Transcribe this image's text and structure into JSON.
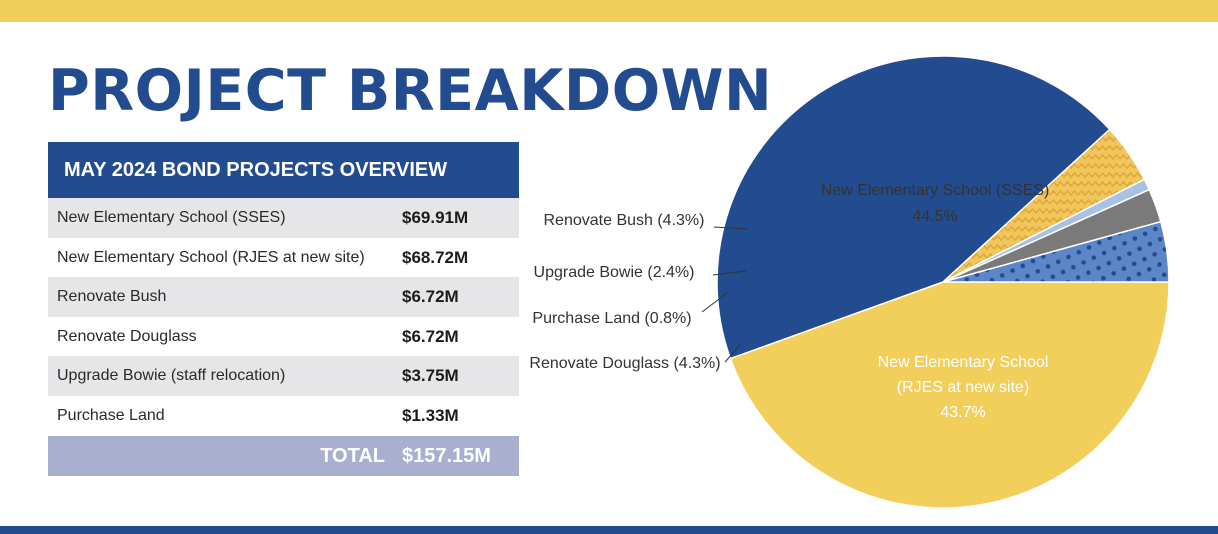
{
  "title": "PROJECT BREAKDOWN",
  "table": {
    "header": "MAY 2024 BOND PROJECTS OVERVIEW",
    "rows": [
      {
        "label": "New Elementary School (SSES)",
        "value": "$69.91M"
      },
      {
        "label": "New Elementary School (RJES at new site)",
        "value": "$68.72M"
      },
      {
        "label": "Renovate Bush",
        "value": "$6.72M"
      },
      {
        "label": "Renovate Douglass",
        "value": "$6.72M"
      },
      {
        "label": "Upgrade Bowie (staff relocation)",
        "value": "$3.75M"
      },
      {
        "label": "Purchase Land",
        "value": "$1.33M"
      }
    ],
    "total_label": "TOTAL",
    "total_value": "$157.15M"
  },
  "colors": {
    "navy": "#234b8f",
    "yellow": "#f2cf5b",
    "blue_dots": "#5c86c8",
    "gray": "#7a7a7a",
    "light_blue": "#a8c2e6",
    "yellow_wave": "#f1c75d",
    "total_band": "#a9afcf"
  },
  "chart_data": {
    "type": "pie",
    "slices": [
      {
        "name": "New Elementary School (SSES)",
        "value": 44.5,
        "label_lines": [
          "New Elementary School (SSES)",
          "44.5%"
        ],
        "label_style": "inside",
        "color": "#f2cf5b",
        "pattern": "solid"
      },
      {
        "name": "New Elementary School (RJES at new site)",
        "value": 43.7,
        "label_lines": [
          "New Elementary School",
          "(RJES at new site)",
          "43.7%"
        ],
        "label_style": "inside",
        "color": "#234b8f",
        "pattern": "solid"
      },
      {
        "name": "Renovate Douglass",
        "value": 4.3,
        "label_lines": [
          "Renovate Douglass (4.3%)"
        ],
        "label_style": "leader",
        "color": "#f1c75d",
        "pattern": "zigzag"
      },
      {
        "name": "Purchase Land",
        "value": 0.8,
        "label_lines": [
          "Purchase Land (0.8%)"
        ],
        "label_style": "leader",
        "color": "#a8c2e6",
        "pattern": "solid"
      },
      {
        "name": "Upgrade Bowie",
        "value": 2.4,
        "label_lines": [
          "Upgrade Bowie (2.4%)"
        ],
        "label_style": "leader",
        "color": "#7a7a7a",
        "pattern": "solid"
      },
      {
        "name": "Renovate Bush",
        "value": 4.3,
        "label_lines": [
          "Renovate Bush (4.3%)"
        ],
        "label_style": "leader",
        "color": "#5c86c8",
        "pattern": "dots"
      }
    ]
  }
}
